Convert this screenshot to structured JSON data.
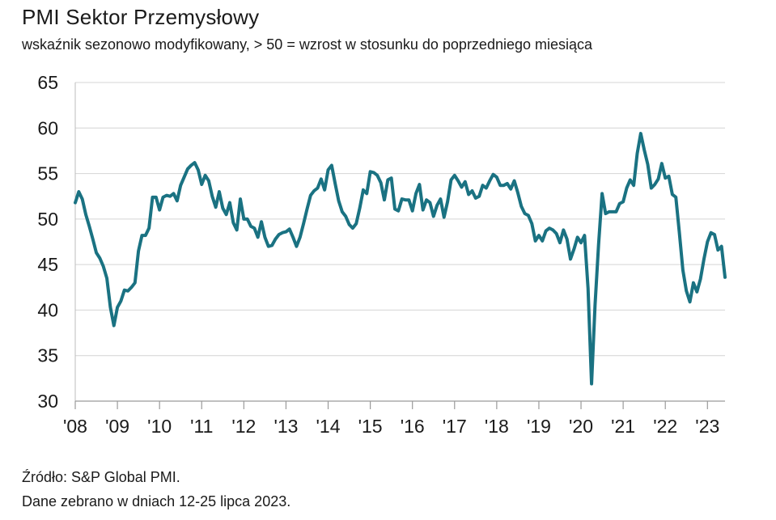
{
  "title": "PMI Sektor Przemysłowy",
  "subtitle": "wskaźnik sezonowo modyfikowany, > 50 = wzrost w stosunku do poprzedniego miesiąca",
  "source": "Źródło: S&P Global PMI.",
  "collection_note": "Dane zebrano w dniach 12-25 lipca 2023.",
  "chart_data": {
    "type": "line",
    "title": "PMI Sektor Przemysłowy",
    "xlabel": "",
    "ylabel": "",
    "ylim": [
      30,
      65
    ],
    "yticks": [
      30,
      35,
      40,
      45,
      50,
      55,
      60,
      65
    ],
    "xticks": [
      "'08",
      "'09",
      "'10",
      "'11",
      "'12",
      "'13",
      "'14",
      "'15",
      "'16",
      "'17",
      "'18",
      "'19",
      "'20",
      "'21",
      "'22",
      "'23"
    ],
    "xlim": [
      "2008-01",
      "2023-06"
    ],
    "grid": true,
    "line_color": "#1a7282",
    "series": [
      {
        "name": "",
        "x": [
          "2008-01",
          "2008-02",
          "2008-03",
          "2008-04",
          "2008-05",
          "2008-06",
          "2008-07",
          "2008-08",
          "2008-09",
          "2008-10",
          "2008-11",
          "2008-12",
          "2009-01",
          "2009-02",
          "2009-03",
          "2009-04",
          "2009-05",
          "2009-06",
          "2009-07",
          "2009-08",
          "2009-09",
          "2009-10",
          "2009-11",
          "2009-12",
          "2010-01",
          "2010-02",
          "2010-03",
          "2010-04",
          "2010-05",
          "2010-06",
          "2010-07",
          "2010-08",
          "2010-09",
          "2010-10",
          "2010-11",
          "2010-12",
          "2011-01",
          "2011-02",
          "2011-03",
          "2011-04",
          "2011-05",
          "2011-06",
          "2011-07",
          "2011-08",
          "2011-09",
          "2011-10",
          "2011-11",
          "2011-12",
          "2012-01",
          "2012-02",
          "2012-03",
          "2012-04",
          "2012-05",
          "2012-06",
          "2012-07",
          "2012-08",
          "2012-09",
          "2012-10",
          "2012-11",
          "2012-12",
          "2013-01",
          "2013-02",
          "2013-03",
          "2013-04",
          "2013-05",
          "2013-06",
          "2013-07",
          "2013-08",
          "2013-09",
          "2013-10",
          "2013-11",
          "2013-12",
          "2014-01",
          "2014-02",
          "2014-03",
          "2014-04",
          "2014-05",
          "2014-06",
          "2014-07",
          "2014-08",
          "2014-09",
          "2014-10",
          "2014-11",
          "2014-12",
          "2015-01",
          "2015-02",
          "2015-03",
          "2015-04",
          "2015-05",
          "2015-06",
          "2015-07",
          "2015-08",
          "2015-09",
          "2015-10",
          "2015-11",
          "2015-12",
          "2016-01",
          "2016-02",
          "2016-03",
          "2016-04",
          "2016-05",
          "2016-06",
          "2016-07",
          "2016-08",
          "2016-09",
          "2016-10",
          "2016-11",
          "2016-12",
          "2017-01",
          "2017-02",
          "2017-03",
          "2017-04",
          "2017-05",
          "2017-06",
          "2017-07",
          "2017-08",
          "2017-09",
          "2017-10",
          "2017-11",
          "2017-12",
          "2018-01",
          "2018-02",
          "2018-03",
          "2018-04",
          "2018-05",
          "2018-06",
          "2018-07",
          "2018-08",
          "2018-09",
          "2018-10",
          "2018-11",
          "2018-12",
          "2019-01",
          "2019-02",
          "2019-03",
          "2019-04",
          "2019-05",
          "2019-06",
          "2019-07",
          "2019-08",
          "2019-09",
          "2019-10",
          "2019-11",
          "2019-12",
          "2020-01",
          "2020-02",
          "2020-03",
          "2020-04",
          "2020-05",
          "2020-06",
          "2020-07",
          "2020-08",
          "2020-09",
          "2020-10",
          "2020-11",
          "2020-12",
          "2021-01",
          "2021-02",
          "2021-03",
          "2021-04",
          "2021-05",
          "2021-06",
          "2021-07",
          "2021-08",
          "2021-09",
          "2021-10",
          "2021-11",
          "2021-12",
          "2022-01",
          "2022-02",
          "2022-03",
          "2022-04",
          "2022-05",
          "2022-06",
          "2022-07",
          "2022-08",
          "2022-09",
          "2022-10",
          "2022-11",
          "2022-12",
          "2023-01",
          "2023-02",
          "2023-03",
          "2023-04",
          "2023-05",
          "2023-06"
        ],
        "values": [
          51.8,
          53.0,
          52.2,
          50.5,
          49.2,
          47.8,
          46.3,
          45.7,
          44.8,
          43.5,
          40.3,
          38.3,
          40.3,
          41.0,
          42.2,
          42.1,
          42.5,
          43.0,
          46.5,
          48.2,
          48.2,
          49.0,
          52.4,
          52.4,
          51.0,
          52.4,
          52.6,
          52.5,
          52.8,
          52.0,
          53.7,
          54.6,
          55.5,
          55.9,
          56.2,
          55.4,
          53.8,
          54.8,
          54.2,
          52.5,
          51.3,
          53.0,
          51.2,
          50.5,
          51.8,
          49.6,
          48.8,
          52.2,
          50.0,
          50.0,
          49.2,
          49.0,
          48.0,
          49.7,
          48.0,
          47.0,
          47.1,
          47.8,
          48.3,
          48.5,
          48.6,
          48.9,
          48.0,
          47.0,
          48.0,
          49.5,
          51.1,
          52.6,
          53.1,
          53.4,
          54.4,
          53.2,
          55.4,
          55.9,
          53.9,
          52.0,
          50.8,
          50.3,
          49.4,
          49.0,
          49.5,
          51.2,
          53.2,
          52.8,
          55.2,
          55.1,
          54.8,
          54.0,
          52.1,
          54.3,
          54.5,
          51.1,
          50.9,
          52.2,
          52.1,
          52.1,
          50.9,
          52.8,
          53.8,
          51.0,
          52.1,
          51.8,
          50.3,
          51.5,
          52.2,
          50.2,
          51.9,
          54.3,
          54.8,
          54.2,
          53.5,
          54.1,
          52.7,
          53.1,
          52.3,
          52.5,
          53.7,
          53.4,
          54.2,
          54.9,
          54.6,
          53.7,
          53.7,
          53.9,
          53.3,
          54.2,
          52.9,
          51.4,
          50.6,
          50.4,
          49.5,
          47.6,
          48.2,
          47.6,
          48.7,
          49.0,
          48.8,
          48.4,
          47.4,
          48.8,
          47.8,
          45.6,
          46.7,
          48.0,
          47.4,
          48.2,
          42.4,
          31.9,
          40.6,
          47.2,
          52.8,
          50.6,
          50.8,
          50.8,
          50.8,
          51.7,
          51.9,
          53.4,
          54.3,
          53.7,
          57.2,
          59.4,
          57.6,
          56.0,
          53.4,
          53.8,
          54.4,
          56.1,
          54.5,
          54.7,
          52.7,
          52.4,
          48.5,
          44.4,
          42.1,
          40.9,
          43.0,
          42.0,
          43.4,
          45.6,
          47.5,
          48.5,
          48.3,
          46.6,
          47.0,
          43.6
        ]
      }
    ]
  }
}
